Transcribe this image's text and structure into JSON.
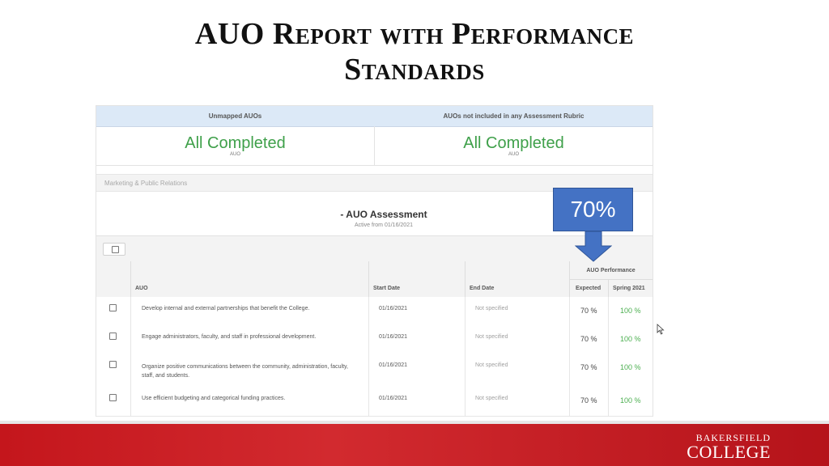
{
  "slide": {
    "title_line1": "AUO Report with Performance",
    "title_line2": "Standards"
  },
  "summary": {
    "col1_header": "Unmapped AUOs",
    "col2_header": "AUOs not included in any Assessment Rubric",
    "col1_value": "All Completed",
    "col1_unit": "AUO",
    "col2_value": "All Completed",
    "col2_unit": "AUO"
  },
  "section": {
    "label": "Marketing & Public Relations"
  },
  "assessment": {
    "title": "- AUO Assessment",
    "subtitle": "Active from 01/16/2021"
  },
  "table": {
    "headers": {
      "auo": "AUO",
      "start": "Start Date",
      "end": "End Date",
      "performance": "AUO Performance",
      "expected": "Expected",
      "spring": "Spring 2021"
    },
    "rows": [
      {
        "auo": "Develop internal and external partnerships that benefit the College.",
        "start": "01/16/2021",
        "end": "Not specified",
        "expected": "70 %",
        "spring": "100 %"
      },
      {
        "auo": "Engage administrators, faculty, and staff in professional development.",
        "start": "01/16/2021",
        "end": "Not specified",
        "expected": "70 %",
        "spring": "100 %"
      },
      {
        "auo": "Organize positive communications between the community, administration, faculty, staff, and students.",
        "start": "01/16/2021",
        "end": "Not specified",
        "expected": "70 %",
        "spring": "100 %"
      },
      {
        "auo": "Use efficient budgeting and categorical funding practices.",
        "start": "01/16/2021",
        "end": "Not specified",
        "expected": "70 %",
        "spring": "100 %"
      }
    ]
  },
  "callout": {
    "value": "70%",
    "color": "#4472c4"
  },
  "footer": {
    "logo_line1": "BAKERSFIELD",
    "logo_line2": "COLLEGE",
    "color": "#c4161c"
  }
}
